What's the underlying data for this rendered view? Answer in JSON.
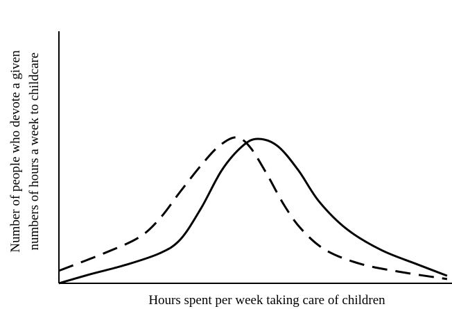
{
  "chart_data": {
    "type": "line",
    "xlabel": "Hours spent per week taking care of children",
    "ylabel": [
      "Number of people who devote a given",
      "numbers of hours a week to childcare"
    ],
    "xlim": [
      0,
      100
    ],
    "ylim": [
      0,
      100
    ],
    "series": [
      {
        "color": "#000000",
        "dashed": false,
        "x": [
          0,
          8,
          16.8,
          25.7,
          31,
          36.3,
          41.6,
          46.9,
          50.8,
          55.8,
          61.1,
          66.4,
          73.5,
          82.3,
          91.2,
          99.1
        ],
        "values": [
          0,
          3.6,
          7.2,
          11.9,
          17.4,
          29.8,
          44.9,
          54.5,
          57.3,
          54.5,
          44.9,
          32.5,
          21.5,
          13.2,
          7.7,
          3.0
        ]
      },
      {
        "color": "#000000",
        "dashed": true,
        "x": [
          0,
          11.5,
          20.4,
          25.7,
          31,
          36.3,
          40.7,
          45.1,
          48.7,
          53.1,
          57.5,
          61.9,
          68.1,
          77,
          87.6,
          99.1
        ],
        "values": [
          5,
          11.9,
          18.2,
          25.6,
          36.4,
          46.8,
          54.2,
          57.9,
          54.2,
          43.3,
          31,
          21.5,
          13.2,
          7.7,
          4.4,
          1.7
        ]
      }
    ]
  }
}
